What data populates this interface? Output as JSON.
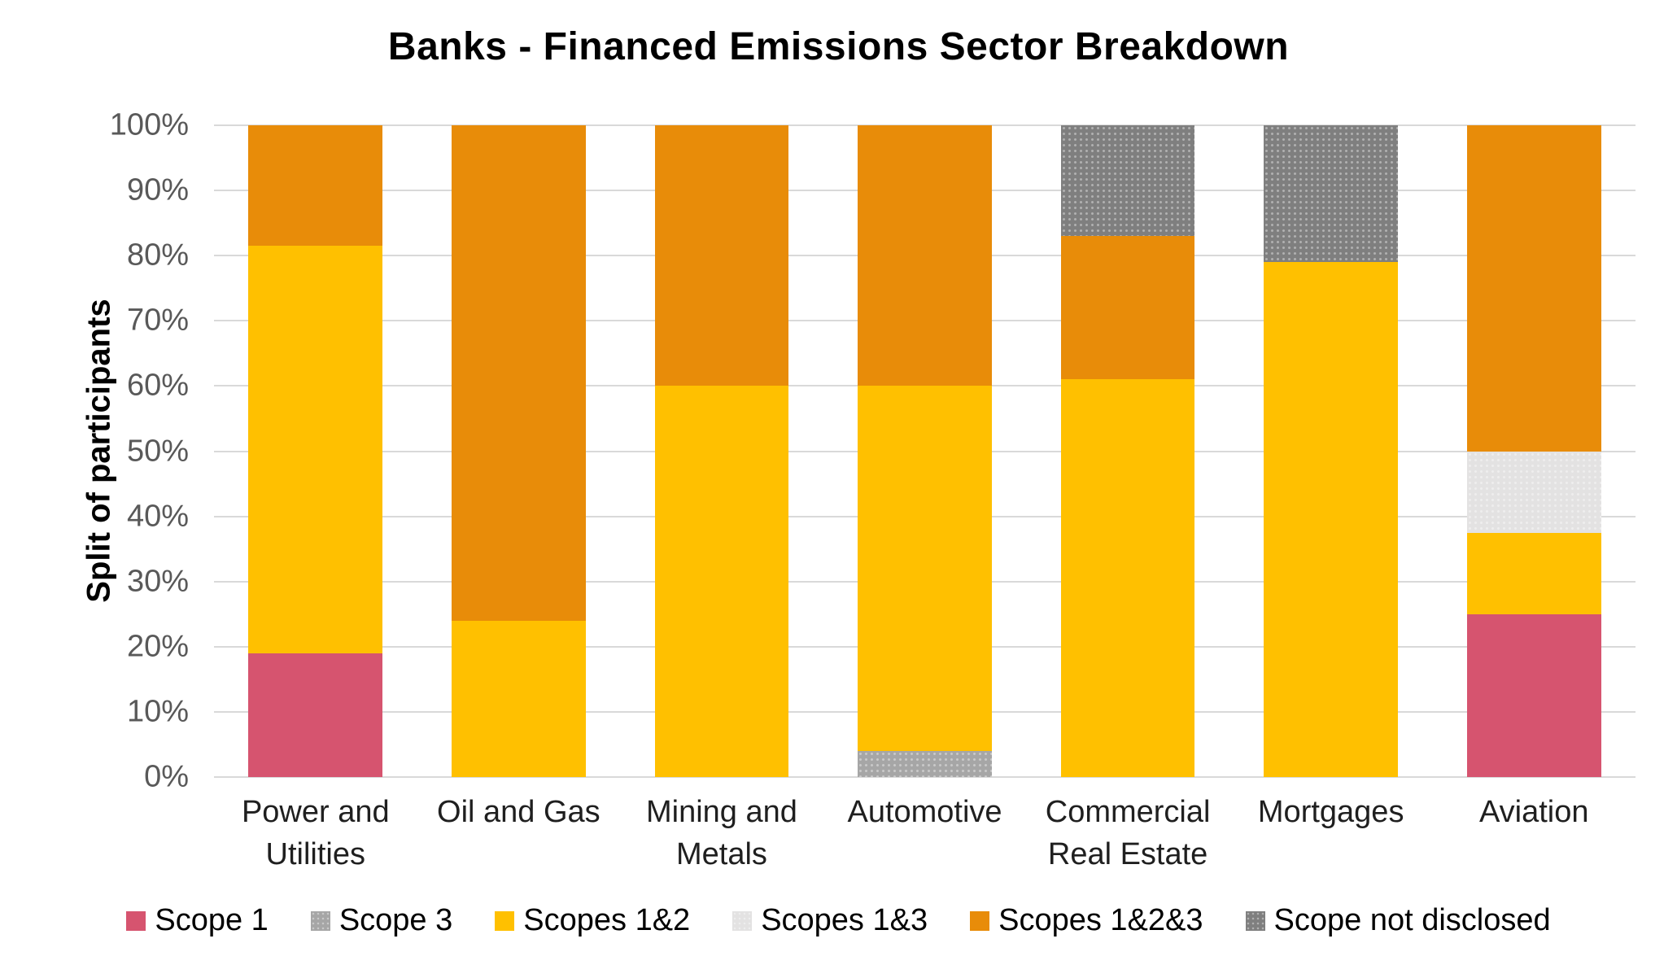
{
  "title": "Banks - Financed Emissions Sector Breakdown",
  "y_axis_label": "Split of participants",
  "colors": {
    "gridline": "#d9d9d9",
    "tick_text": "#595959",
    "category_text": "#1f1f1f",
    "title_text": "#000000"
  },
  "chart_data": {
    "type": "bar",
    "stacked": true,
    "title": "Banks - Financed Emissions Sector Breakdown",
    "ylabel": "Split of participants",
    "xlabel": "",
    "ylim": [
      0,
      100
    ],
    "grid": true,
    "legend_position": "bottom",
    "y_ticks": [
      "0%",
      "10%",
      "20%",
      "30%",
      "40%",
      "50%",
      "60%",
      "70%",
      "80%",
      "90%",
      "100%"
    ],
    "categories": [
      "Power and Utilities",
      "Oil and Gas",
      "Mining and Metals",
      "Automotive",
      "Commercial Real Estate",
      "Mortgages",
      "Aviation"
    ],
    "series": [
      {
        "name": "Scope 1",
        "color": "#d6546f",
        "pattern": "solid",
        "values": [
          19,
          0,
          0,
          0,
          0,
          0,
          25
        ]
      },
      {
        "name": "Scope 3",
        "color": "#a6a6a6",
        "pattern": "dots",
        "values": [
          0,
          0,
          0,
          4,
          0,
          0,
          0
        ]
      },
      {
        "name": "Scopes 1&2",
        "color": "#ffc000",
        "pattern": "solid",
        "values": [
          62.5,
          24,
          60,
          56,
          61,
          79,
          12.5
        ]
      },
      {
        "name": "Scopes 1&3",
        "color": "#e3e2e2",
        "pattern": "dots",
        "values": [
          0,
          0,
          0,
          0,
          0,
          0,
          12.5
        ]
      },
      {
        "name": "Scopes 1&2&3",
        "color": "#e88c09",
        "pattern": "solid",
        "values": [
          18.5,
          76,
          40,
          40,
          22,
          0,
          50
        ]
      },
      {
        "name": "Scope not disclosed",
        "color": "#7f7f7f",
        "pattern": "dots",
        "values": [
          0,
          0,
          0,
          0,
          17,
          21,
          0
        ]
      }
    ]
  }
}
